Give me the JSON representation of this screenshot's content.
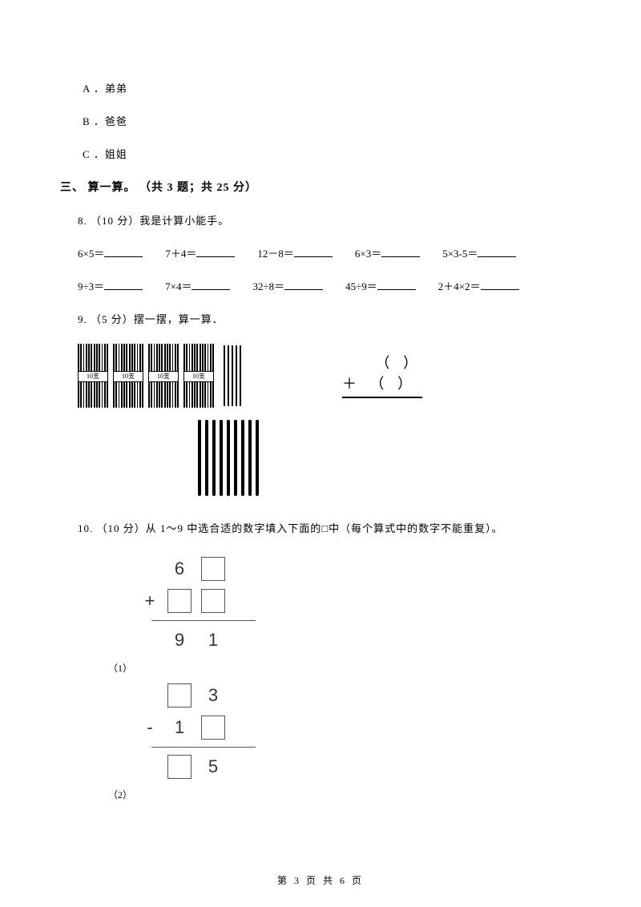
{
  "options": {
    "a": "A ．弟弟",
    "b": "B ．爸爸",
    "c": "C ．姐姐"
  },
  "section3": {
    "title": "三、 算一算。 （共 3 题；共 25 分）"
  },
  "q8": {
    "header": "8. （10 分）我是计算小能手。",
    "row1": [
      "6×5＝",
      "7＋4＝",
      "12－8＝",
      "6×3＝",
      "5×3-5＝"
    ],
    "row2": [
      "9÷3＝",
      "7×4＝",
      "32÷8＝",
      "45÷9＝",
      "2＋4×2＝"
    ]
  },
  "q9": {
    "header": "9. （5 分）摆一摆，算一算．",
    "bundle_label": "10支",
    "bundle_count": 4,
    "loose_right_count": 5,
    "bottom_stick_count": 9,
    "vert_line1": "（  ）",
    "vert_line2": "＋ （  ）"
  },
  "q10": {
    "header": "10. （10 分）从 1～9 中选合适的数字填入下面的□中（每个算式中的数字不能重复）。",
    "sub1_label": "（1）",
    "sub2_label": "（2）",
    "add": {
      "top_left": "6",
      "op": "+",
      "result_l": "9",
      "result_r": "1"
    },
    "sub": {
      "top_right": "3",
      "op": "-",
      "mid_l": "1",
      "result_r": "5"
    }
  },
  "footer": {
    "text": "第 3 页 共 6 页"
  },
  "style": {
    "page_bg": "#ffffff",
    "text_color": "#000000",
    "box_border": "#555555"
  }
}
